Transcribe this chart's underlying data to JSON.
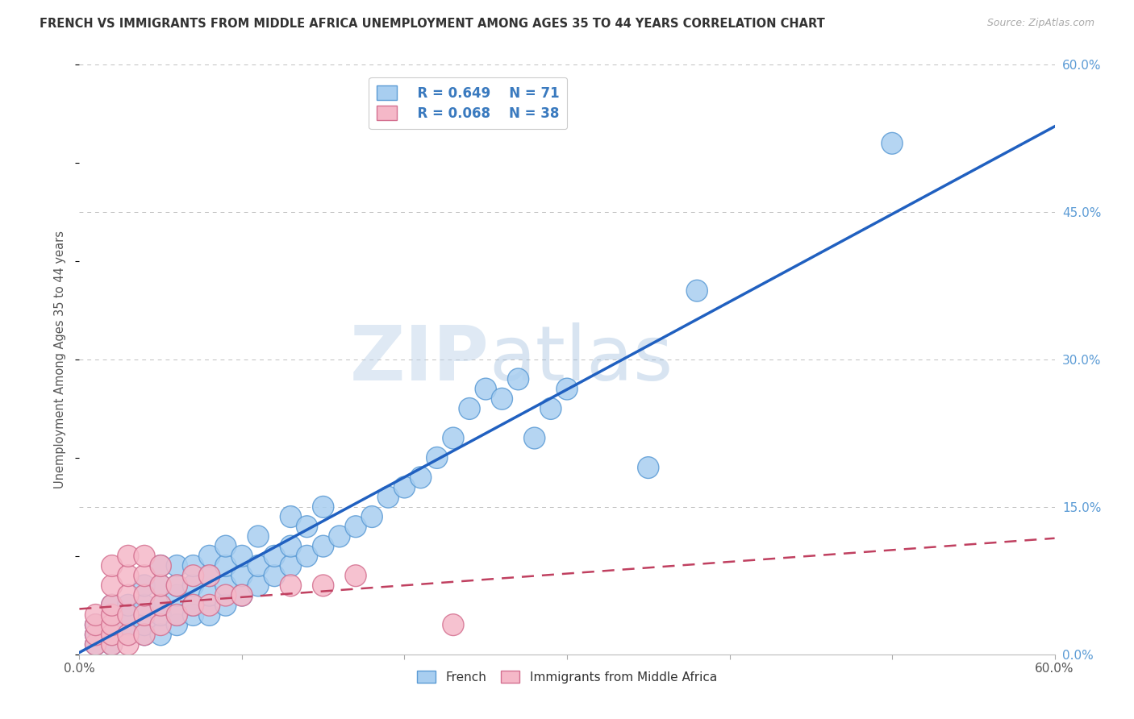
{
  "title": "FRENCH VS IMMIGRANTS FROM MIDDLE AFRICA UNEMPLOYMENT AMONG AGES 35 TO 44 YEARS CORRELATION CHART",
  "source": "Source: ZipAtlas.com",
  "ylabel": "Unemployment Among Ages 35 to 44 years",
  "x_min": 0.0,
  "x_max": 0.6,
  "y_min": 0.0,
  "y_max": 0.6,
  "x_ticks": [
    0.0,
    0.1,
    0.2,
    0.3,
    0.4,
    0.5,
    0.6
  ],
  "x_tick_labels": [
    "0.0%",
    "",
    "",
    "",
    "",
    "",
    "60.0%"
  ],
  "y_ticks": [
    0.0,
    0.15,
    0.3,
    0.45,
    0.6
  ],
  "y_tick_labels_right": [
    "0.0%",
    "15.0%",
    "30.0%",
    "45.0%",
    "60.0%"
  ],
  "french_color": "#a8cef0",
  "french_edge_color": "#5b9bd5",
  "immigrant_color": "#f5b8c8",
  "immigrant_edge_color": "#d47090",
  "trend_french_color": "#2060c0",
  "trend_immigrant_color": "#c04060",
  "legend_french_R": "R = 0.649",
  "legend_french_N": "N = 71",
  "legend_immigrant_R": "R = 0.068",
  "legend_immigrant_N": "N = 38",
  "watermark_zip": "ZIP",
  "watermark_atlas": "atlas",
  "background_color": "#ffffff",
  "grid_color": "#c0c0c0",
  "french_x": [
    0.01,
    0.01,
    0.01,
    0.02,
    0.02,
    0.02,
    0.02,
    0.02,
    0.03,
    0.03,
    0.03,
    0.03,
    0.04,
    0.04,
    0.04,
    0.04,
    0.05,
    0.05,
    0.05,
    0.05,
    0.05,
    0.06,
    0.06,
    0.06,
    0.06,
    0.06,
    0.07,
    0.07,
    0.07,
    0.07,
    0.08,
    0.08,
    0.08,
    0.08,
    0.09,
    0.09,
    0.09,
    0.09,
    0.1,
    0.1,
    0.1,
    0.11,
    0.11,
    0.11,
    0.12,
    0.12,
    0.13,
    0.13,
    0.13,
    0.14,
    0.14,
    0.15,
    0.15,
    0.16,
    0.17,
    0.18,
    0.19,
    0.2,
    0.21,
    0.22,
    0.23,
    0.24,
    0.25,
    0.26,
    0.27,
    0.28,
    0.29,
    0.3,
    0.35,
    0.38,
    0.5
  ],
  "french_y": [
    0.01,
    0.02,
    0.03,
    0.01,
    0.02,
    0.03,
    0.04,
    0.05,
    0.02,
    0.03,
    0.04,
    0.05,
    0.02,
    0.03,
    0.05,
    0.07,
    0.02,
    0.04,
    0.05,
    0.07,
    0.09,
    0.03,
    0.04,
    0.06,
    0.07,
    0.09,
    0.04,
    0.05,
    0.07,
    0.09,
    0.04,
    0.06,
    0.08,
    0.1,
    0.05,
    0.07,
    0.09,
    0.11,
    0.06,
    0.08,
    0.1,
    0.07,
    0.09,
    0.12,
    0.08,
    0.1,
    0.09,
    0.11,
    0.14,
    0.1,
    0.13,
    0.11,
    0.15,
    0.12,
    0.13,
    0.14,
    0.16,
    0.17,
    0.18,
    0.2,
    0.22,
    0.25,
    0.27,
    0.26,
    0.28,
    0.22,
    0.25,
    0.27,
    0.19,
    0.37,
    0.52
  ],
  "immigrant_x": [
    0.01,
    0.01,
    0.01,
    0.01,
    0.02,
    0.02,
    0.02,
    0.02,
    0.02,
    0.02,
    0.02,
    0.03,
    0.03,
    0.03,
    0.03,
    0.03,
    0.03,
    0.04,
    0.04,
    0.04,
    0.04,
    0.04,
    0.05,
    0.05,
    0.05,
    0.05,
    0.06,
    0.06,
    0.07,
    0.07,
    0.08,
    0.08,
    0.09,
    0.1,
    0.13,
    0.15,
    0.17,
    0.23
  ],
  "immigrant_y": [
    0.01,
    0.02,
    0.03,
    0.04,
    0.01,
    0.02,
    0.03,
    0.04,
    0.05,
    0.07,
    0.09,
    0.01,
    0.02,
    0.04,
    0.06,
    0.08,
    0.1,
    0.02,
    0.04,
    0.06,
    0.08,
    0.1,
    0.03,
    0.05,
    0.07,
    0.09,
    0.04,
    0.07,
    0.05,
    0.08,
    0.05,
    0.08,
    0.06,
    0.06,
    0.07,
    0.07,
    0.08,
    0.03
  ]
}
